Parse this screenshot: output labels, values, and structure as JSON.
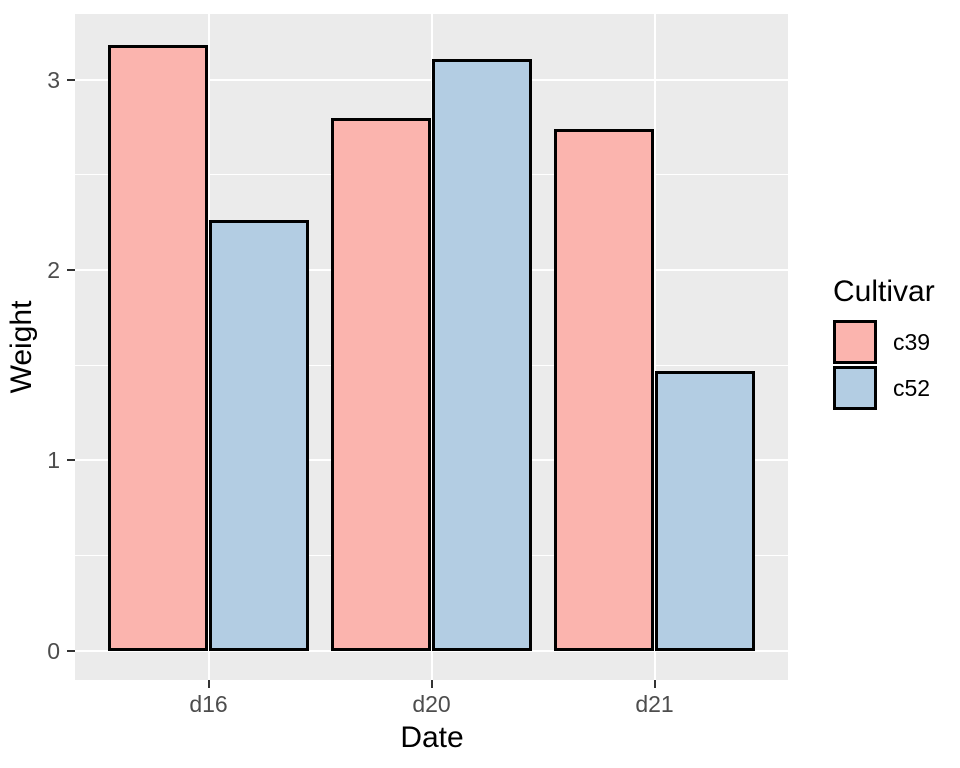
{
  "figure": {
    "background": "#FFFFFF",
    "panel_background": "#EBEBEB",
    "gridline_color": "#FFFFFF",
    "bar_border_color": "#000000",
    "tick_mark_color": "#333333",
    "tick_label_color": "#4D4D4D",
    "title_color": "#000000"
  },
  "chart_data": {
    "type": "bar",
    "title": "",
    "xlabel": "Date",
    "ylabel": "Weight",
    "categories": [
      "d16",
      "d20",
      "d21"
    ],
    "series": [
      {
        "name": "c39",
        "color": "#FBB4AE",
        "values": [
          3.18,
          2.8,
          2.74
        ]
      },
      {
        "name": "c52",
        "color": "#B3CDE3",
        "values": [
          2.26,
          3.11,
          1.47
        ]
      }
    ],
    "ylim": [
      0,
      3.35
    ],
    "yticks": [
      0,
      1,
      2,
      3
    ],
    "ytick_labels": [
      "0",
      "1",
      "2",
      "3"
    ],
    "yticks_minor": [
      0.5,
      1.5,
      2.5
    ],
    "grid": "on",
    "legend_title": "Cultivar",
    "legend_position": "right"
  }
}
